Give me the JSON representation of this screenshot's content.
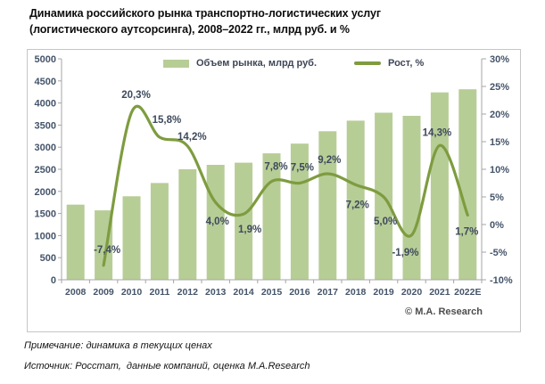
{
  "title": {
    "line1": "Динамика российского рынка транспортно-логистических услуг",
    "line2": "(логистического аутсорсинга), 2008–2022 гг., млрд руб. и %"
  },
  "chart_data": {
    "type": "bar+line combo",
    "categories": [
      "2008",
      "2009",
      "2010",
      "2011",
      "2012",
      "2013",
      "2014",
      "2015",
      "2016",
      "2017",
      "2018",
      "2019",
      "2020",
      "2021",
      "2022E"
    ],
    "series": [
      {
        "name": "Объем рынка, млрд руб.",
        "type": "bar",
        "axis": "left",
        "values": [
          1700,
          1570,
          1890,
          2190,
          2500,
          2600,
          2650,
          2860,
          3080,
          3360,
          3600,
          3780,
          3710,
          4240,
          4310
        ]
      },
      {
        "name": "Рост, %",
        "type": "line",
        "axis": "right",
        "smooth": true,
        "values": [
          null,
          -7.4,
          20.3,
          15.8,
          14.2,
          4.0,
          1.9,
          7.8,
          7.5,
          9.2,
          7.2,
          5.0,
          -1.9,
          14.3,
          1.7
        ],
        "labels": [
          "",
          "-7,4%",
          "20,3%",
          "15,8%",
          "14,2%",
          "4,0%",
          "1,9%",
          "7,8%",
          "7,5%",
          "9,2%",
          "7,2%",
          "5,0%",
          "-1,9%",
          "14,3%",
          "1,7%"
        ]
      }
    ],
    "left_axis": {
      "min": 0,
      "max": 5000,
      "step": 500,
      "suffix": ""
    },
    "right_axis": {
      "min": -10,
      "max": 30,
      "step": 5,
      "suffix": "%"
    },
    "grid": false,
    "legend_position": "top-center-inside",
    "colors": {
      "bar": "#b7cd96",
      "line": "#7e9c3f",
      "axis_line": "#a6a6a6",
      "tick_text": "#44546a",
      "data_label_text": "#3e4a5c"
    },
    "copyright": "© M.A. Research"
  },
  "notes": {
    "note": "Примечание: динамика в текущих ценах",
    "source": "Источник: Росстат,  данные компаний, оценка M.A.Research"
  }
}
